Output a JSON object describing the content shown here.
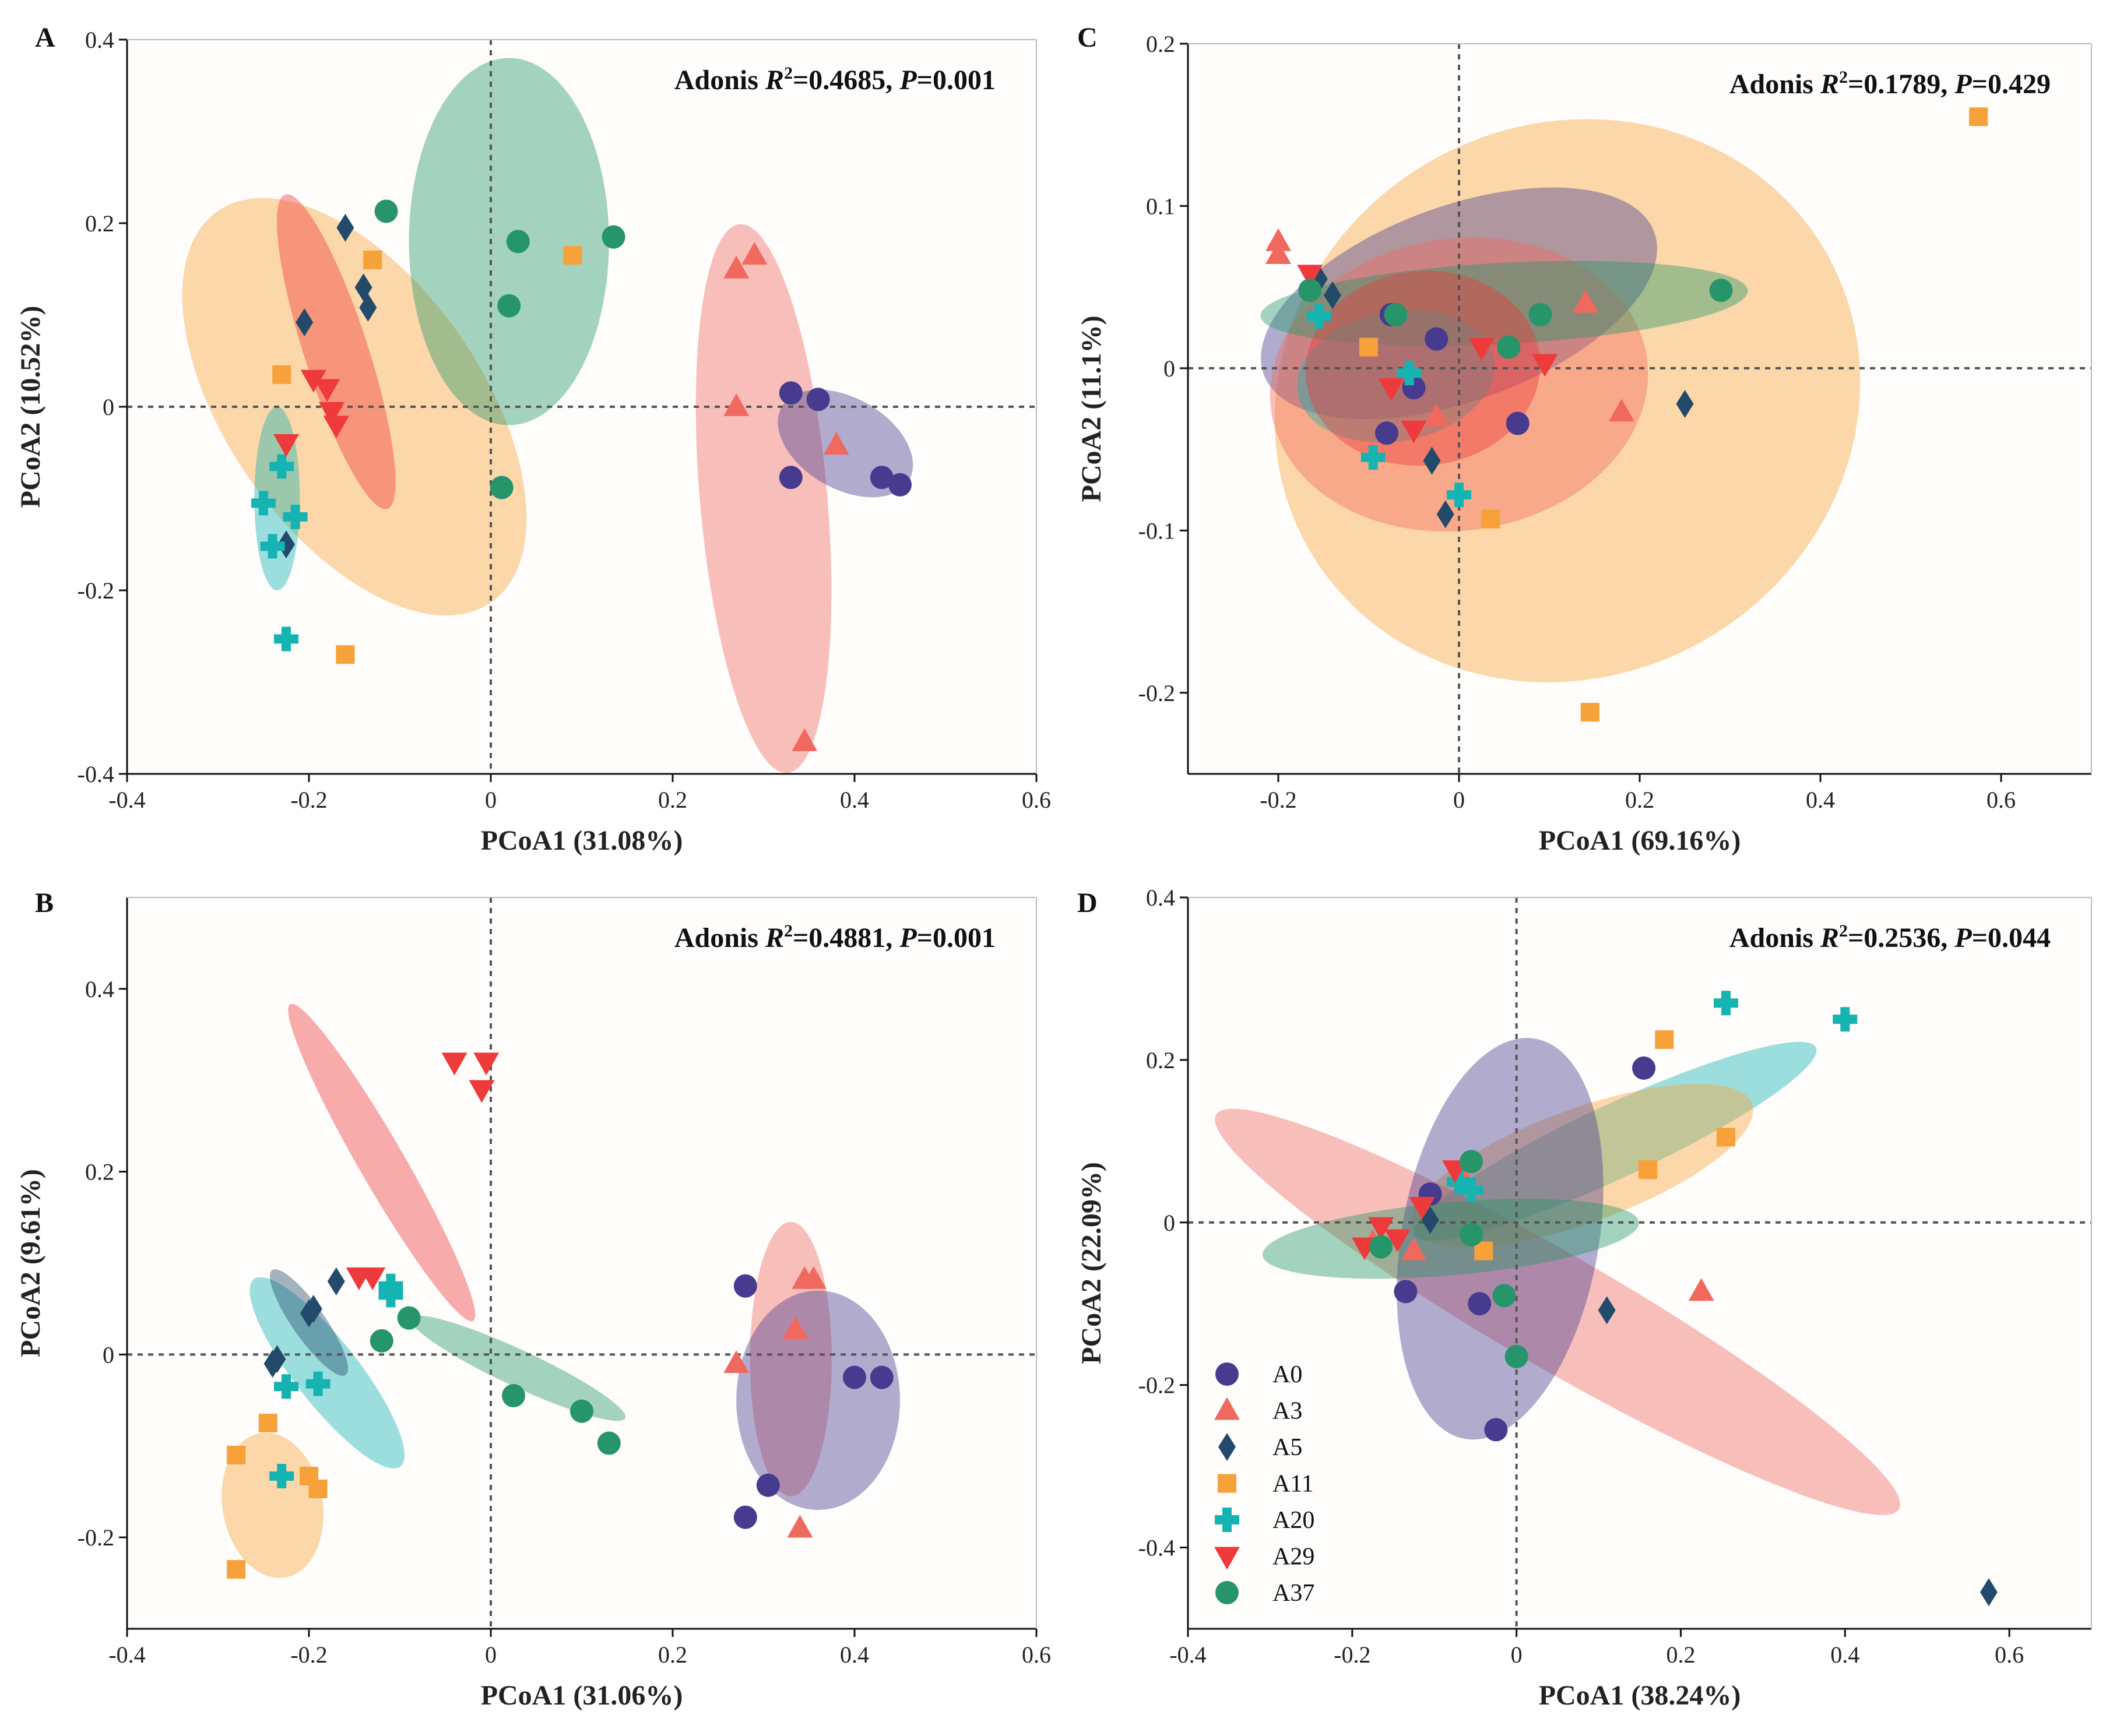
{
  "colors": {
    "A0": "#473b8f",
    "A3": "#f0695f",
    "A5": "#234a6b",
    "A11": "#f7a13a",
    "A20": "#16b3b3",
    "A29": "#ee3a3a",
    "A37": "#26956a"
  },
  "markers": {
    "A0": "circle",
    "A3": "triangle-up",
    "A5": "diamond",
    "A11": "square",
    "A20": "plus",
    "A29": "triangle-down",
    "A37": "circle"
  },
  "legend": {
    "items": [
      "A0",
      "A3",
      "A5",
      "A11",
      "A20",
      "A29",
      "A37"
    ]
  },
  "chart_data": [
    {
      "type": "scatter",
      "panel": "A",
      "xlabel": "PCoA1 (31.08%)",
      "ylabel": "PCoA2 (10.52%)",
      "xlim": [
        -0.4,
        0.6
      ],
      "ylim": [
        -0.4,
        0.4
      ],
      "xticks": [
        -0.4,
        -0.2,
        0,
        0.2,
        0.4,
        0.6
      ],
      "yticks": [
        -0.4,
        -0.2,
        0,
        0.2,
        0.4
      ],
      "xtick_labels": [
        "-0.4",
        "-0.2",
        "0",
        "0.2",
        "0.4",
        "0.6"
      ],
      "ytick_labels": [
        "-0.4",
        "-0.2",
        "0",
        "0.2",
        "0.4"
      ],
      "adonis": {
        "prefix": "Adonis ",
        "r": "R",
        "sup": "2",
        "r_value": "=0.4685, ",
        "p": "P",
        "p_value": "=0.001"
      },
      "ellipses": [
        {
          "group": "A11",
          "cx": -0.15,
          "cy": 0.0,
          "rx": 0.14,
          "ry": 0.26,
          "angle": -35
        },
        {
          "group": "A37",
          "cx": 0.02,
          "cy": 0.18,
          "rx": 0.11,
          "ry": 0.2,
          "angle": 0
        },
        {
          "group": "A29",
          "cx": -0.17,
          "cy": 0.06,
          "rx": 0.035,
          "ry": 0.18,
          "angle": -18
        },
        {
          "group": "A20",
          "cx": -0.235,
          "cy": -0.1,
          "rx": 0.025,
          "ry": 0.1,
          "angle": 0
        },
        {
          "group": "A3",
          "cx": 0.3,
          "cy": -0.1,
          "rx": 0.07,
          "ry": 0.3,
          "angle": -5
        },
        {
          "group": "A0",
          "cx": 0.39,
          "cy": -0.04,
          "rx": 0.05,
          "ry": 0.08,
          "angle": -60
        }
      ],
      "series": [
        {
          "name": "A0",
          "points": [
            [
              0.33,
              0.015
            ],
            [
              0.36,
              0.008
            ],
            [
              0.33,
              -0.077
            ],
            [
              0.43,
              -0.077
            ],
            [
              0.45,
              -0.085
            ]
          ]
        },
        {
          "name": "A3",
          "points": [
            [
              0.27,
              0.15
            ],
            [
              0.29,
              0.165
            ],
            [
              0.27,
              0.0
            ],
            [
              0.38,
              -0.042
            ],
            [
              0.345,
              -0.365
            ]
          ]
        },
        {
          "name": "A5",
          "points": [
            [
              -0.16,
              0.195
            ],
            [
              -0.14,
              0.13
            ],
            [
              -0.135,
              0.108
            ],
            [
              -0.205,
              0.092
            ],
            [
              -0.225,
              -0.15
            ]
          ]
        },
        {
          "name": "A11",
          "points": [
            [
              -0.13,
              0.16
            ],
            [
              0.09,
              0.165
            ],
            [
              -0.23,
              0.035
            ],
            [
              -0.16,
              -0.27
            ]
          ]
        },
        {
          "name": "A20",
          "points": [
            [
              -0.23,
              -0.065
            ],
            [
              -0.25,
              -0.105
            ],
            [
              -0.215,
              -0.12
            ],
            [
              -0.24,
              -0.152
            ],
            [
              -0.225,
              -0.253
            ]
          ]
        },
        {
          "name": "A29",
          "points": [
            [
              -0.195,
              0.03
            ],
            [
              -0.18,
              0.02
            ],
            [
              -0.175,
              -0.005
            ],
            [
              -0.17,
              -0.02
            ],
            [
              -0.225,
              -0.04
            ]
          ]
        },
        {
          "name": "A37",
          "points": [
            [
              -0.115,
              0.213
            ],
            [
              0.03,
              0.18
            ],
            [
              0.135,
              0.185
            ],
            [
              0.02,
              0.11
            ],
            [
              0.012,
              -0.088
            ]
          ]
        }
      ]
    },
    {
      "type": "scatter",
      "panel": "C",
      "xlabel": "PCoA1 (69.16%)",
      "ylabel": "PCoA2 (11.1%)",
      "xlim": [
        -0.3,
        0.7
      ],
      "ylim": [
        -0.25,
        0.2
      ],
      "xticks": [
        -0.2,
        0,
        0.2,
        0.4,
        0.6
      ],
      "yticks": [
        -0.2,
        -0.1,
        0,
        0.1,
        0.2
      ],
      "xtick_labels": [
        "-0.2",
        "0",
        "0.2",
        "0.4",
        "0.6"
      ],
      "ytick_labels": [
        "-0.2",
        "-0.1",
        "0",
        "0.1",
        "0.2"
      ],
      "adonis": {
        "prefix": "Adonis ",
        "r": "R",
        "sup": "2",
        "r_value": "=0.1789, ",
        "p": "P",
        "p_value": "=0.429"
      },
      "ellipses": [
        {
          "group": "A11",
          "cx": 0.12,
          "cy": -0.02,
          "rx": 0.33,
          "ry": 0.17,
          "angle": -30
        },
        {
          "group": "A0",
          "cx": 0.0,
          "cy": 0.04,
          "rx": 0.23,
          "ry": 0.06,
          "angle": -20
        },
        {
          "group": "A3",
          "cx": 0.0,
          "cy": -0.01,
          "rx": 0.21,
          "ry": 0.09,
          "angle": -8
        },
        {
          "group": "A37",
          "cx": 0.05,
          "cy": 0.04,
          "rx": 0.27,
          "ry": 0.025,
          "angle": -3
        },
        {
          "group": "A20",
          "cx": -0.07,
          "cy": -0.005,
          "rx": 0.11,
          "ry": 0.04,
          "angle": -10
        },
        {
          "group": "A29",
          "cx": -0.04,
          "cy": 0.0,
          "rx": 0.13,
          "ry": 0.06,
          "angle": -5
        }
      ],
      "series": [
        {
          "name": "A0",
          "points": [
            [
              -0.075,
              0.033
            ],
            [
              -0.025,
              0.018
            ],
            [
              -0.05,
              -0.012
            ],
            [
              -0.08,
              -0.04
            ],
            [
              0.065,
              -0.034
            ]
          ]
        },
        {
          "name": "A3",
          "points": [
            [
              -0.2,
              0.078
            ],
            [
              -0.2,
              0.07
            ],
            [
              0.14,
              0.04
            ],
            [
              -0.025,
              -0.03
            ],
            [
              0.18,
              -0.027
            ]
          ]
        },
        {
          "name": "A5",
          "points": [
            [
              -0.155,
              0.055
            ],
            [
              -0.14,
              0.045
            ],
            [
              0.25,
              -0.022
            ],
            [
              -0.03,
              -0.057
            ],
            [
              -0.015,
              -0.09
            ]
          ]
        },
        {
          "name": "A11",
          "points": [
            [
              0.575,
              0.155
            ],
            [
              -0.1,
              0.013
            ],
            [
              0.035,
              -0.093
            ],
            [
              0.145,
              -0.212
            ]
          ]
        },
        {
          "name": "A20",
          "points": [
            [
              -0.155,
              0.032
            ],
            [
              -0.055,
              -0.003
            ],
            [
              -0.095,
              -0.055
            ],
            [
              0.0,
              -0.078
            ]
          ]
        },
        {
          "name": "A29",
          "points": [
            [
              -0.165,
              0.058
            ],
            [
              0.025,
              0.013
            ],
            [
              0.095,
              0.003
            ],
            [
              -0.075,
              -0.012
            ],
            [
              -0.05,
              -0.038
            ]
          ]
        },
        {
          "name": "A37",
          "points": [
            [
              -0.165,
              0.048
            ],
            [
              -0.07,
              0.033
            ],
            [
              0.09,
              0.033
            ],
            [
              0.055,
              0.013
            ],
            [
              0.29,
              0.048
            ]
          ]
        }
      ]
    },
    {
      "type": "scatter",
      "panel": "B",
      "xlabel": "PCoA1 (31.06%)",
      "ylabel": "PCoA2 (9.61%)",
      "xlim": [
        -0.4,
        0.6
      ],
      "ylim": [
        -0.3,
        0.5
      ],
      "xticks": [
        -0.4,
        -0.2,
        0,
        0.2,
        0.4,
        0.6
      ],
      "yticks": [
        -0.2,
        0,
        0.2,
        0.4
      ],
      "xtick_labels": [
        "-0.4",
        "-0.2",
        "0",
        "0.2",
        "0.4",
        "0.6"
      ],
      "ytick_labels": [
        "-0.2",
        "0",
        "0.2",
        "0.4"
      ],
      "adonis": {
        "prefix": "Adonis ",
        "r": "R",
        "sup": "2",
        "r_value": "=0.4881, ",
        "p": "P",
        "p_value": "=0.001"
      },
      "ellipses": [
        {
          "group": "A29",
          "cx": -0.12,
          "cy": 0.21,
          "rx": 0.025,
          "ry": 0.2,
          "angle": -30
        },
        {
          "group": "A20",
          "cx": -0.18,
          "cy": -0.02,
          "rx": 0.035,
          "ry": 0.13,
          "angle": -38
        },
        {
          "group": "A5",
          "cx": -0.2,
          "cy": 0.035,
          "rx": 0.018,
          "ry": 0.07,
          "angle": -35
        },
        {
          "group": "A11",
          "cx": -0.24,
          "cy": -0.165,
          "rx": 0.055,
          "ry": 0.08,
          "angle": -10
        },
        {
          "group": "A37",
          "cx": 0.03,
          "cy": -0.015,
          "rx": 0.13,
          "ry": 0.02,
          "angle": 25
        },
        {
          "group": "A3",
          "cx": 0.33,
          "cy": -0.005,
          "rx": 0.045,
          "ry": 0.15,
          "angle": 0
        },
        {
          "group": "A0",
          "cx": 0.36,
          "cy": -0.05,
          "rx": 0.09,
          "ry": 0.12,
          "angle": 0
        }
      ],
      "series": [
        {
          "name": "A0",
          "points": [
            [
              0.28,
              0.075
            ],
            [
              0.4,
              -0.025
            ],
            [
              0.43,
              -0.025
            ],
            [
              0.305,
              -0.143
            ],
            [
              0.28,
              -0.178
            ]
          ]
        },
        {
          "name": "A3",
          "points": [
            [
              0.345,
              0.082
            ],
            [
              0.355,
              0.082
            ],
            [
              0.335,
              0.027
            ],
            [
              0.27,
              -0.01
            ],
            [
              0.34,
              -0.19
            ]
          ]
        },
        {
          "name": "A5",
          "points": [
            [
              -0.17,
              0.08
            ],
            [
              -0.195,
              0.05
            ],
            [
              -0.2,
              0.045
            ],
            [
              -0.235,
              -0.005
            ],
            [
              -0.24,
              -0.01
            ]
          ]
        },
        {
          "name": "A11",
          "points": [
            [
              -0.245,
              -0.075
            ],
            [
              -0.28,
              -0.11
            ],
            [
              -0.2,
              -0.133
            ],
            [
              -0.19,
              -0.147
            ],
            [
              -0.28,
              -0.235
            ]
          ]
        },
        {
          "name": "A20",
          "points": [
            [
              -0.11,
              0.075
            ],
            [
              -0.11,
              0.065
            ],
            [
              -0.225,
              -0.035
            ],
            [
              -0.19,
              -0.032
            ],
            [
              -0.23,
              -0.133
            ]
          ]
        },
        {
          "name": "A29",
          "points": [
            [
              -0.04,
              0.32
            ],
            [
              -0.005,
              0.32
            ],
            [
              -0.01,
              0.29
            ],
            [
              -0.145,
              0.085
            ],
            [
              -0.13,
              0.085
            ]
          ]
        },
        {
          "name": "A37",
          "points": [
            [
              -0.09,
              0.04
            ],
            [
              -0.12,
              0.015
            ],
            [
              0.025,
              -0.045
            ],
            [
              0.1,
              -0.062
            ],
            [
              0.13,
              -0.097
            ]
          ]
        }
      ]
    },
    {
      "type": "scatter",
      "panel": "D",
      "xlabel": "PCoA1 (38.24%)",
      "ylabel": "PCoA2 (22.09%)",
      "xlim": [
        -0.4,
        0.7
      ],
      "ylim": [
        -0.5,
        0.4
      ],
      "xticks": [
        -0.4,
        -0.2,
        0,
        0.2,
        0.4,
        0.6
      ],
      "yticks": [
        -0.4,
        -0.2,
        0,
        0.2,
        0.4
      ],
      "xtick_labels": [
        "-0.4",
        "-0.2",
        "0",
        "0.2",
        "0.4",
        "0.6"
      ],
      "ytick_labels": [
        "-0.4",
        "-0.2",
        "0",
        "0.2",
        "0.4"
      ],
      "adonis": {
        "prefix": "Adonis ",
        "r": "R",
        "sup": "2",
        "r_value": "=0.2536, ",
        "p": "P",
        "p_value": "=0.044"
      },
      "legend_position": "bottom-left",
      "ellipses": [
        {
          "group": "A3",
          "cx": 0.05,
          "cy": -0.11,
          "rx": 0.48,
          "ry": 0.07,
          "angle": 30
        },
        {
          "group": "A20",
          "cx": 0.12,
          "cy": 0.1,
          "rx": 0.27,
          "ry": 0.045,
          "angle": -25
        },
        {
          "group": "A11",
          "cx": 0.08,
          "cy": 0.07,
          "rx": 0.22,
          "ry": 0.07,
          "angle": -20
        },
        {
          "group": "A0",
          "cx": -0.02,
          "cy": -0.02,
          "rx": 0.12,
          "ry": 0.25,
          "angle": 10
        },
        {
          "group": "A37",
          "cx": -0.08,
          "cy": -0.02,
          "rx": 0.23,
          "ry": 0.045,
          "angle": -5
        }
      ],
      "series": [
        {
          "name": "A0",
          "points": [
            [
              0.155,
              0.19
            ],
            [
              -0.105,
              0.035
            ],
            [
              -0.045,
              -0.1
            ],
            [
              -0.135,
              -0.085
            ],
            [
              -0.025,
              -0.255
            ]
          ]
        },
        {
          "name": "A3",
          "points": [
            [
              -0.065,
              0.055
            ],
            [
              0.225,
              -0.085
            ],
            [
              -0.125,
              -0.035
            ],
            [
              -0.175,
              -0.025
            ]
          ]
        },
        {
          "name": "A5",
          "points": [
            [
              -0.105,
              0.003
            ],
            [
              0.11,
              -0.108
            ],
            [
              0.575,
              -0.455
            ]
          ]
        },
        {
          "name": "A11",
          "points": [
            [
              0.18,
              0.225
            ],
            [
              0.255,
              0.105
            ],
            [
              0.16,
              0.065
            ],
            [
              -0.04,
              -0.035
            ]
          ]
        },
        {
          "name": "A20",
          "points": [
            [
              0.255,
              0.27
            ],
            [
              0.4,
              0.25
            ],
            [
              -0.07,
              0.05
            ],
            [
              -0.055,
              0.04
            ]
          ]
        },
        {
          "name": "A29",
          "points": [
            [
              -0.075,
              0.065
            ],
            [
              -0.115,
              0.02
            ],
            [
              -0.165,
              -0.005
            ],
            [
              -0.145,
              -0.02
            ],
            [
              -0.185,
              -0.03
            ]
          ]
        },
        {
          "name": "A37",
          "points": [
            [
              -0.055,
              0.075
            ],
            [
              -0.055,
              -0.015
            ],
            [
              -0.165,
              -0.03
            ],
            [
              -0.015,
              -0.09
            ],
            [
              0.0,
              -0.165
            ]
          ]
        }
      ]
    }
  ]
}
